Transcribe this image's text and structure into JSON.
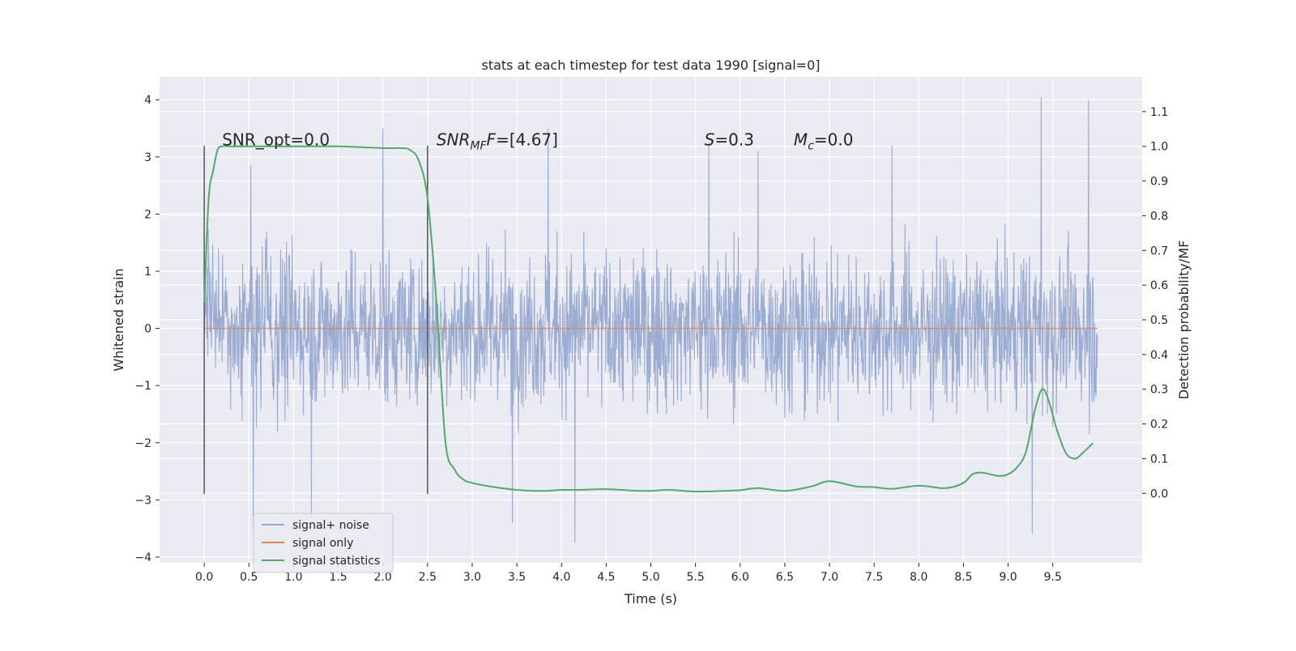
{
  "chart_data": {
    "type": "line",
    "title": "stats at each timestep for test data 1990 [signal=0]",
    "xlabel": "Time (s)",
    "ylabel": "Whitened strain",
    "y2label": "Detection probability/MF",
    "xlim": [
      -0.5,
      10.5
    ],
    "ylim": [
      -4.1,
      4.4
    ],
    "y2lim": [
      -0.2,
      1.2
    ],
    "x_ticks": [
      0.0,
      0.5,
      1.0,
      1.5,
      2.0,
      2.5,
      3.0,
      3.5,
      4.0,
      4.5,
      5.0,
      5.5,
      6.0,
      6.5,
      7.0,
      7.5,
      8.0,
      8.5,
      9.0,
      9.5
    ],
    "x_tick_labels": [
      "0.0",
      "0.5",
      "1.0",
      "1.5",
      "2.0",
      "2.5",
      "3.0",
      "3.5",
      "4.0",
      "4.5",
      "5.0",
      "5.5",
      "6.0",
      "6.5",
      "7.0",
      "7.5",
      "8.0",
      "8.5",
      "9.0",
      "9.5"
    ],
    "y_ticks": [
      -4,
      -3,
      -2,
      -1,
      0,
      1,
      2,
      3,
      4
    ],
    "y_tick_labels": [
      "−4",
      "−3",
      "−2",
      "−1",
      "0",
      "1",
      "2",
      "3",
      "4"
    ],
    "y2_ticks": [
      0.0,
      0.1,
      0.2,
      0.3,
      0.4,
      0.5,
      0.6,
      0.7,
      0.8,
      0.9,
      1.0,
      1.1
    ],
    "y2_tick_labels": [
      "0.0",
      "0.1",
      "0.2",
      "0.3",
      "0.4",
      "0.5",
      "0.6",
      "0.7",
      "0.8",
      "0.9",
      "1.0",
      "1.1"
    ],
    "grid": true,
    "legend_position": "lower-left",
    "colors": {
      "background": "#eaeaf2",
      "grid": "#ffffff",
      "noise": "#97a9d0",
      "signal": "#dd8452",
      "stats": "#55a868",
      "marker": "#555555"
    },
    "annotations": [
      {
        "text": "SNR_opt=0.0",
        "x": 0.2,
        "y": 3.2
      },
      {
        "text_main": "SNR",
        "text_sub": "MF",
        "text_tail": "F=[4.67]",
        "x": 2.6,
        "y": 3.2
      },
      {
        "text_main": "S",
        "text_tail": "=0.3",
        "x": 5.6,
        "y": 3.2
      },
      {
        "text_main": "M",
        "text_sub": "c",
        "text_tail": "=0.0",
        "x": 6.6,
        "y": 3.2
      }
    ],
    "markers": [
      {
        "x": 0.0,
        "y_range": [
          -2.9,
          3.2
        ]
      },
      {
        "x": 2.5,
        "y_range": [
          -2.9,
          3.2
        ]
      }
    ],
    "series": [
      {
        "name": "signal+ noise",
        "kind": "noise_band",
        "x_range": [
          0.0,
          10.0
        ],
        "band_core": [
          -1.3,
          1.3
        ],
        "band_typical": [
          -2.1,
          2.1
        ],
        "notable_peaks": [
          {
            "x": 0.52,
            "y": 2.85
          },
          {
            "x": 2.0,
            "y": 3.5
          },
          {
            "x": 3.85,
            "y": 3.5
          },
          {
            "x": 5.65,
            "y": 3.25
          },
          {
            "x": 6.2,
            "y": 3.1
          },
          {
            "x": 7.7,
            "y": 3.2
          },
          {
            "x": 9.37,
            "y": 4.05
          },
          {
            "x": 9.9,
            "y": 4.0
          },
          {
            "x": 0.55,
            "y": -3.5
          },
          {
            "x": 1.2,
            "y": -3.3
          },
          {
            "x": 3.45,
            "y": -3.4
          },
          {
            "x": 4.15,
            "y": -3.75
          },
          {
            "x": 9.27,
            "y": -3.6
          }
        ]
      },
      {
        "name": "signal only",
        "kind": "line",
        "x": [
          0.0,
          10.0
        ],
        "y": [
          0.0,
          0.0
        ]
      },
      {
        "name": "signal statistics",
        "kind": "line",
        "axis": "right",
        "x": [
          0.0,
          0.05,
          0.1,
          0.15,
          0.2,
          0.3,
          0.5,
          1.0,
          1.5,
          2.0,
          2.2,
          2.3,
          2.4,
          2.5,
          2.6,
          2.7,
          2.8,
          2.9,
          3.0,
          3.2,
          3.5,
          3.8,
          4.0,
          4.2,
          4.5,
          4.8,
          5.0,
          5.2,
          5.5,
          5.8,
          6.0,
          6.2,
          6.5,
          6.8,
          7.0,
          7.3,
          7.5,
          7.7,
          8.0,
          8.3,
          8.5,
          8.6,
          8.7,
          8.8,
          8.9,
          9.0,
          9.1,
          9.2,
          9.3,
          9.38,
          9.45,
          9.55,
          9.65,
          9.75,
          9.85,
          9.95
        ],
        "y": [
          0.55,
          0.85,
          0.93,
          0.99,
          1.0,
          1.0,
          1.0,
          1.0,
          1.0,
          0.995,
          0.995,
          0.99,
          0.96,
          0.85,
          0.55,
          0.15,
          0.07,
          0.04,
          0.03,
          0.02,
          0.01,
          0.007,
          0.01,
          0.01,
          0.012,
          0.008,
          0.007,
          0.01,
          0.005,
          0.007,
          0.009,
          0.015,
          0.007,
          0.02,
          0.035,
          0.02,
          0.018,
          0.013,
          0.022,
          0.015,
          0.03,
          0.055,
          0.06,
          0.055,
          0.05,
          0.055,
          0.075,
          0.12,
          0.24,
          0.3,
          0.27,
          0.18,
          0.115,
          0.1,
          0.12,
          0.145
        ]
      }
    ]
  },
  "legend": {
    "items": [
      {
        "label": "signal+ noise",
        "color": "#97a9d0"
      },
      {
        "label": "signal only",
        "color": "#dd8452"
      },
      {
        "label": "signal statistics",
        "color": "#55a868"
      }
    ]
  }
}
